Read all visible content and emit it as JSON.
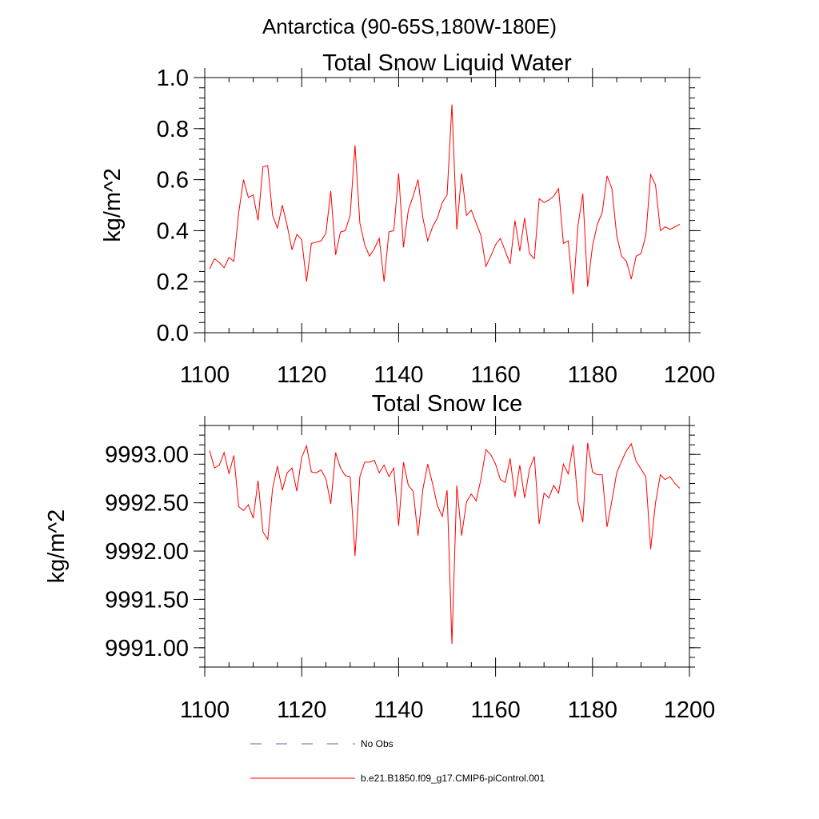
{
  "figure": {
    "title": "Antarctica (90-65S,180W-180E)"
  },
  "legend": {
    "items": [
      {
        "label": "No Obs",
        "color": "#5a6aa0",
        "style": "dashed"
      },
      {
        "label": "b.e21.B1850.f09_g17.CMIP6-piControl.001",
        "color": "#ff0000",
        "style": "solid"
      }
    ]
  },
  "chart_data": [
    {
      "type": "line",
      "title": "Total Snow Liquid Water",
      "xlabel": "",
      "ylabel": "kg/m^2",
      "xlim": [
        1100,
        1200
      ],
      "ylim": [
        0.0,
        1.0
      ],
      "xticks": [
        1100,
        1120,
        1140,
        1160,
        1180,
        1200
      ],
      "xtick_labels": [
        "1100",
        "1120",
        "1140",
        "1160",
        "1180",
        "1200"
      ],
      "yticks": [
        0.0,
        0.2,
        0.4,
        0.6,
        0.8,
        1.0
      ],
      "ytick_labels": [
        "0.0",
        "0.2",
        "0.4",
        "0.6",
        "0.8",
        "1.0"
      ],
      "color": "#ff0000",
      "x": [
        1101,
        1102,
        1103,
        1104,
        1105,
        1106,
        1107,
        1108,
        1109,
        1110,
        1111,
        1112,
        1113,
        1114,
        1115,
        1116,
        1117,
        1118,
        1119,
        1120,
        1121,
        1122,
        1123,
        1124,
        1125,
        1126,
        1127,
        1128,
        1129,
        1130,
        1131,
        1132,
        1133,
        1134,
        1135,
        1136,
        1137,
        1138,
        1139,
        1140,
        1141,
        1142,
        1143,
        1144,
        1145,
        1146,
        1147,
        1148,
        1149,
        1150,
        1151,
        1152,
        1153,
        1154,
        1155,
        1156,
        1157,
        1158,
        1159,
        1160,
        1161,
        1162,
        1163,
        1164,
        1165,
        1166,
        1167,
        1168,
        1169,
        1170,
        1171,
        1172,
        1173,
        1174,
        1175,
        1176,
        1177,
        1178,
        1179,
        1180,
        1181,
        1182,
        1183,
        1184,
        1185,
        1186,
        1187,
        1188,
        1189,
        1190,
        1191,
        1192,
        1193,
        1194,
        1195,
        1196,
        1197,
        1198
      ],
      "y": [
        0.25,
        0.29,
        0.275,
        0.255,
        0.295,
        0.28,
        0.47,
        0.6,
        0.53,
        0.54,
        0.44,
        0.65,
        0.655,
        0.46,
        0.41,
        0.5,
        0.42,
        0.325,
        0.385,
        0.365,
        0.2,
        0.35,
        0.355,
        0.36,
        0.39,
        0.555,
        0.305,
        0.395,
        0.4,
        0.46,
        0.735,
        0.43,
        0.345,
        0.3,
        0.33,
        0.37,
        0.2,
        0.395,
        0.4,
        0.625,
        0.335,
        0.48,
        0.535,
        0.6,
        0.45,
        0.36,
        0.415,
        0.45,
        0.51,
        0.54,
        0.895,
        0.405,
        0.625,
        0.46,
        0.48,
        0.43,
        0.38,
        0.26,
        0.3,
        0.345,
        0.37,
        0.32,
        0.27,
        0.44,
        0.32,
        0.45,
        0.31,
        0.29,
        0.525,
        0.51,
        0.52,
        0.535,
        0.565,
        0.35,
        0.36,
        0.15,
        0.42,
        0.545,
        0.18,
        0.34,
        0.425,
        0.47,
        0.615,
        0.565,
        0.38,
        0.3,
        0.28,
        0.21,
        0.3,
        0.31,
        0.38,
        0.62,
        0.58,
        0.4,
        0.415,
        0.405,
        0.415,
        0.425
      ]
    },
    {
      "type": "line",
      "title": "Total Snow Ice",
      "xlabel": "",
      "ylabel": "kg/m^2",
      "xlim": [
        1100,
        1200
      ],
      "ylim": [
        9990.8,
        9993.3
      ],
      "xticks": [
        1100,
        1120,
        1140,
        1160,
        1180,
        1200
      ],
      "xtick_labels": [
        "1100",
        "1120",
        "1140",
        "1160",
        "1180",
        "1200"
      ],
      "yticks": [
        9991.0,
        9991.5,
        9992.0,
        9992.5,
        9993.0
      ],
      "ytick_labels": [
        "9991.00",
        "9991.50",
        "9992.00",
        "9992.50",
        "9993.00"
      ],
      "color": "#ff0000",
      "x": [
        1101,
        1102,
        1103,
        1104,
        1105,
        1106,
        1107,
        1108,
        1109,
        1110,
        1111,
        1112,
        1113,
        1114,
        1115,
        1116,
        1117,
        1118,
        1119,
        1120,
        1121,
        1122,
        1123,
        1124,
        1125,
        1126,
        1127,
        1128,
        1129,
        1130,
        1131,
        1132,
        1133,
        1134,
        1135,
        1136,
        1137,
        1138,
        1139,
        1140,
        1141,
        1142,
        1143,
        1144,
        1145,
        1146,
        1147,
        1148,
        1149,
        1150,
        1151,
        1152,
        1153,
        1154,
        1155,
        1156,
        1157,
        1158,
        1159,
        1160,
        1161,
        1162,
        1163,
        1164,
        1165,
        1166,
        1167,
        1168,
        1169,
        1170,
        1171,
        1172,
        1173,
        1174,
        1175,
        1176,
        1177,
        1178,
        1179,
        1180,
        1181,
        1182,
        1183,
        1184,
        1185,
        1186,
        1187,
        1188,
        1189,
        1190,
        1191,
        1192,
        1193,
        1194,
        1195,
        1196,
        1197,
        1198
      ],
      "y": [
        9993.04,
        9992.86,
        9992.89,
        9993.02,
        9992.8,
        9992.99,
        9992.46,
        9992.42,
        9992.48,
        9992.34,
        9992.73,
        9992.2,
        9992.12,
        9992.65,
        9992.88,
        9992.63,
        9992.81,
        9992.86,
        9992.62,
        9992.97,
        9993.09,
        9992.82,
        9992.81,
        9992.84,
        9992.75,
        9992.49,
        9993.02,
        9992.86,
        9992.78,
        9992.77,
        9991.95,
        9992.77,
        9992.92,
        9992.92,
        9992.94,
        9992.81,
        9992.89,
        9992.77,
        9992.86,
        9992.26,
        9992.92,
        9992.68,
        9992.62,
        9992.16,
        9992.64,
        9992.9,
        9992.7,
        9992.47,
        9992.36,
        9992.63,
        9991.04,
        9992.68,
        9992.16,
        9992.51,
        9992.59,
        9992.52,
        9992.75,
        9993.05,
        9993.0,
        9992.9,
        9992.74,
        9992.71,
        9992.96,
        9992.56,
        9992.89,
        9992.55,
        9992.85,
        9992.98,
        9992.28,
        9992.6,
        9992.55,
        9992.68,
        9992.6,
        9992.9,
        9992.8,
        9993.1,
        9992.51,
        9992.3,
        9993.12,
        9992.82,
        9992.79,
        9992.79,
        9992.25,
        9992.52,
        9992.81,
        9992.93,
        9993.04,
        9993.11,
        9992.93,
        9992.85,
        9992.77,
        9992.02,
        9992.5,
        9992.79,
        9992.74,
        9992.77,
        9992.7,
        9992.65
      ]
    }
  ]
}
